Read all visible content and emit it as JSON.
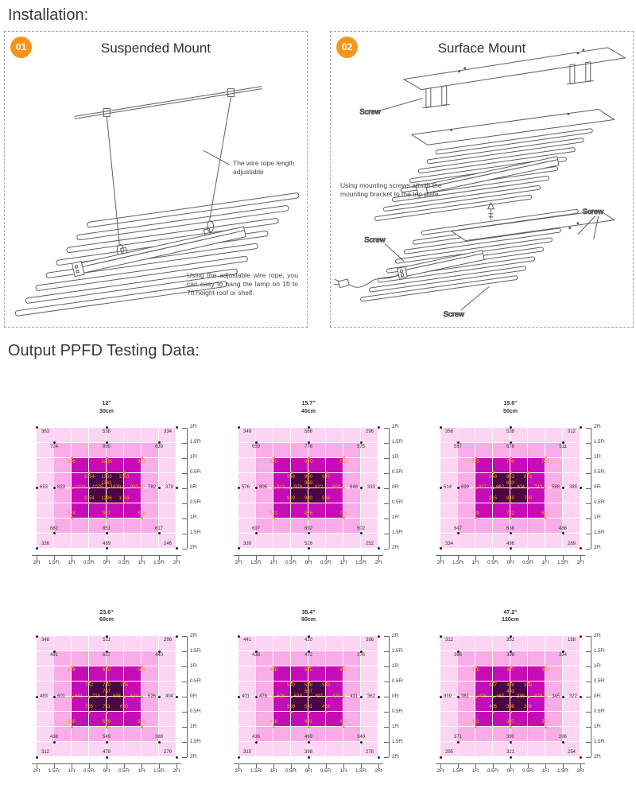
{
  "headings": {
    "installation": "Installation:",
    "ppfd": "Output PPFD Testing Data:"
  },
  "install": {
    "badge_color": "#f7941e",
    "screw_label": "Screw",
    "panels": [
      {
        "badge": "01",
        "title": "Suspended Mount",
        "notes": [
          "The wire rope length adjustable",
          "Using the adjustable wire rope, you can easy to hang the lamp on 1ft to 7ft height roof or shelf."
        ]
      },
      {
        "badge": "02",
        "title": "Surface Mount",
        "notes": [
          "Using mounting screws attach the mounting bracket to the top plate."
        ]
      }
    ]
  },
  "axis": {
    "x": [
      "2Ft",
      "1.5Ft",
      "1Ft",
      "0.5Ft",
      "0Ft",
      "0.5Ft",
      "1Ft",
      "1.5Ft",
      "2Ft"
    ],
    "y": [
      "2Ft",
      "1.5Ft",
      "1Ft",
      "0.5Ft",
      "0Ft",
      "0.5Ft",
      "1Ft",
      "1.5Ft",
      "2Ft"
    ]
  },
  "colors": {
    "core": "#4d0545",
    "ring_inner": "#c60cb7",
    "ring_mid": "#f9ace8",
    "ring_outer": "#fbd5f3",
    "label_dark": "#333333",
    "label_orange": "#f5a21b",
    "axis": "#666666"
  },
  "chart_data": [
    {
      "type": "heatmap",
      "title_in": "12\"",
      "title_cm": "30cm",
      "labels": {
        "t20": [
          363,
          538,
          334
        ],
        "t15": [
          724,
          899,
          639
        ],
        "t10": [
          986,
          1236,
          913
        ],
        "t05": [
          1054,
          1360,
          1053
        ],
        "center": 1361,
        "mid": [
          653,
          823,
          1033,
          1075,
          1039,
          983,
          782,
          379
        ],
        "b05": [
          1054,
          1296,
          1003
        ],
        "b10": [
          874,
          947,
          838
        ],
        "b15": [
          682,
          851,
          617
        ],
        "b20": [
          336,
          489,
          246
        ]
      }
    },
    {
      "type": "heatmap",
      "title_in": "15.7\"",
      "title_cm": "40cm",
      "labels": {
        "t20": [
          349,
          588,
          296
        ],
        "t15": [
          659,
          776,
          575
        ],
        "t10": [
          820,
          910,
          750
        ],
        "t05": [
          948,
          960,
          940
        ],
        "center": 969,
        "mid": [
          576,
          805,
          913,
          978,
          922,
          859,
          648,
          333
        ],
        "b05": [
          929,
          940,
          888
        ],
        "b10": [
          843,
          876,
          738
        ],
        "b15": [
          697,
          692,
          502
        ],
        "b20": [
          339,
          526,
          252
        ]
      }
    },
    {
      "type": "heatmap",
      "title_in": "19.6\"",
      "title_cm": "50cm",
      "labels": {
        "t20": [
          358,
          538,
          312
        ],
        "t15": [
          567,
          676,
          511
        ],
        "t10": [
          723,
          750,
          738
        ],
        "t05": [
          848,
          853,
          823
        ],
        "center": 883,
        "mid": [
          514,
          699,
          817,
          862,
          804,
          743,
          588,
          385
        ],
        "b05": [
          815,
          840,
          790
        ],
        "b10": [
          738,
          742,
          687
        ],
        "b15": [
          647,
          638,
          486
        ],
        "b20": [
          334,
          496,
          289
        ]
      }
    },
    {
      "type": "heatmap",
      "title_in": "23.6\"",
      "title_cm": "60cm",
      "labels": {
        "t20": [
          348,
          511,
          296
        ],
        "t15": [
          481,
          617,
          440
        ],
        "t10": [
          628,
          690,
          603
        ],
        "t05": [
          732,
          730,
          706
        ],
        "center": 747,
        "mid": [
          483,
          601,
          681,
          718,
          695,
          633,
          526,
          404
        ],
        "b05": [
          705,
          711,
          680
        ],
        "b10": [
          638,
          679,
          580
        ],
        "b15": [
          438,
          549,
          389
        ],
        "b20": [
          312,
          478,
          270
        ]
      }
    },
    {
      "type": "heatmap",
      "title_in": "35.4\"",
      "title_cm": "90cm",
      "labels": {
        "t20": [
          441,
          420,
          386
        ],
        "t15": [
          438,
          472,
          376
        ],
        "t10": [
          466,
          515,
          452
        ],
        "t05": [
          540,
          538,
          530
        ],
        "center": 527,
        "mid": [
          401,
          478,
          508,
          538,
          497,
          470,
          411,
          362
        ],
        "b05": [
          508,
          531,
          498
        ],
        "b10": [
          446,
          491,
          453
        ],
        "b15": [
          436,
          469,
          340
        ],
        "b20": [
          315,
          398,
          278
        ]
      }
    },
    {
      "type": "heatmap",
      "title_in": "47.2\"",
      "title_cm": "120cm",
      "labels": {
        "t20": [
          312,
          351,
          188
        ],
        "t15": [
          386,
          398,
          334
        ],
        "t10": [
          416,
          437,
          368
        ],
        "t05": [
          437,
          428,
          390
        ],
        "center": 433,
        "mid": [
          319,
          381,
          406,
          463,
          388,
          379,
          345,
          322
        ],
        "b05": [
          405,
          398,
          386
        ],
        "b10": [
          391,
          397,
          352
        ],
        "b15": [
          371,
          390,
          296
        ],
        "b20": [
          295,
          321,
          254
        ]
      }
    }
  ]
}
